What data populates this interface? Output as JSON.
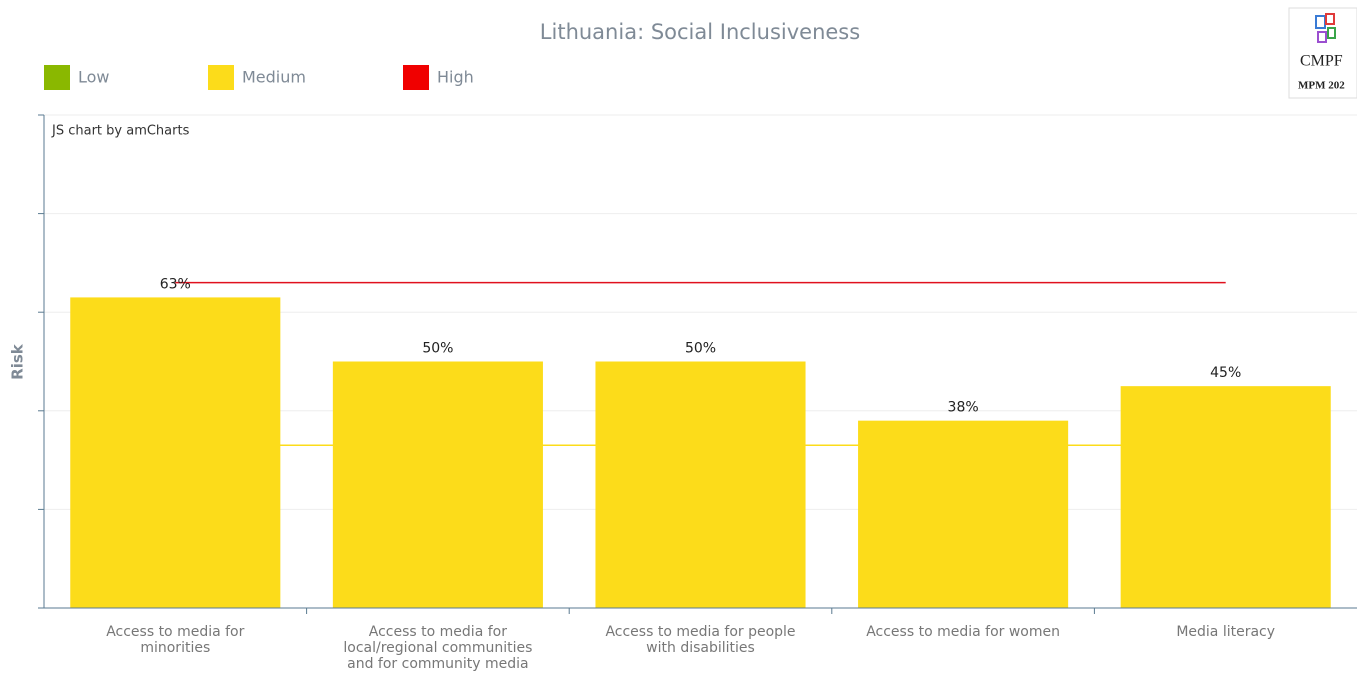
{
  "chart_data": {
    "type": "bar",
    "title": "Lithuania: Social Inclusiveness",
    "watermark": "JS chart by amCharts",
    "y_label": "Risk",
    "logo": {
      "name": "CMPF",
      "edition": "MPM 202"
    },
    "legend": [
      {
        "name": "Low",
        "color": "#8ab800"
      },
      {
        "name": "Medium",
        "color": "#fcdc1a"
      },
      {
        "name": "High",
        "color": "#f00000"
      }
    ],
    "categories": [
      "Access to media for minorities",
      "Access to media for local/regional communities and for community media",
      "Access to media for people with disabilities",
      "Access to media for women",
      "Media literacy"
    ],
    "values": [
      63,
      50,
      50,
      38,
      45
    ],
    "value_labels": [
      "63%",
      "50%",
      "50%",
      "38%",
      "45%"
    ],
    "color": "#fcdc1a",
    "thresholds": [
      {
        "value": 33,
        "color": "#fcdc1a"
      },
      {
        "value": 66,
        "color": "#e0101e"
      }
    ],
    "ylim": [
      0,
      100
    ],
    "yticks": [
      0,
      20,
      40,
      60,
      80,
      100
    ],
    "grid": true
  }
}
